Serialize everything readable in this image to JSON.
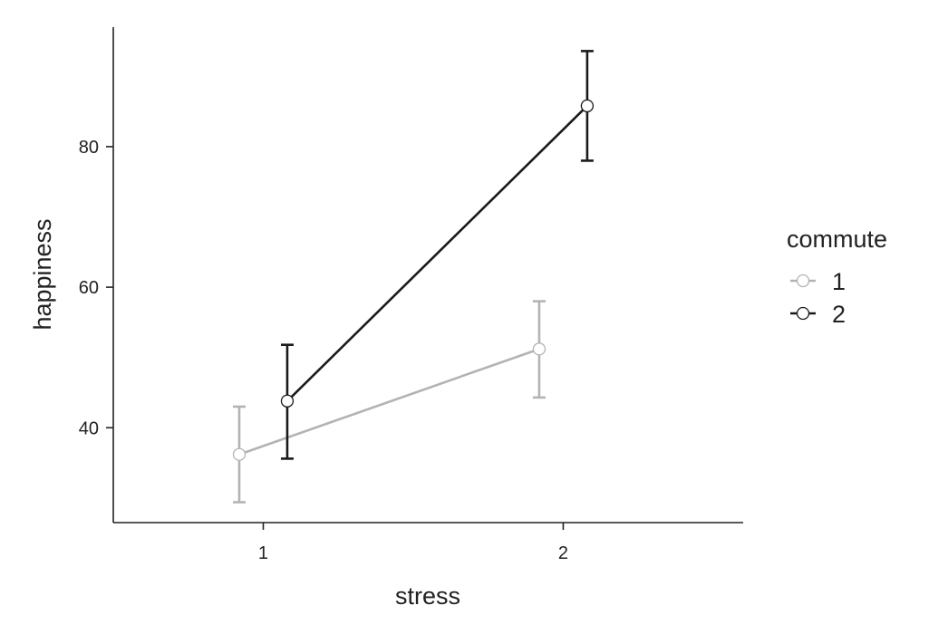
{
  "chart_data": {
    "type": "line",
    "title": "",
    "xlabel": "stress",
    "ylabel": "happiness",
    "x_categories": [
      "1",
      "2"
    ],
    "xlim": [
      0.5,
      2.6
    ],
    "ylim": [
      26.5,
      97
    ],
    "y_ticks": [
      40,
      60,
      80
    ],
    "y_tick_labels": [
      "40",
      "60",
      "80"
    ],
    "grid": false,
    "error_bars": true,
    "legend": {
      "title": "commute",
      "position": "right"
    },
    "series": [
      {
        "name": "1",
        "color": "#b3b3b3",
        "dodge": -0.08,
        "values": [
          36.2,
          51.2
        ],
        "lower": [
          29.4,
          44.3
        ],
        "upper": [
          43.0,
          58.0
        ]
      },
      {
        "name": "2",
        "color": "#1a1a1a",
        "dodge": 0.08,
        "values": [
          43.8,
          85.8
        ],
        "lower": [
          35.6,
          78.0
        ],
        "upper": [
          51.8,
          93.6
        ]
      }
    ]
  }
}
